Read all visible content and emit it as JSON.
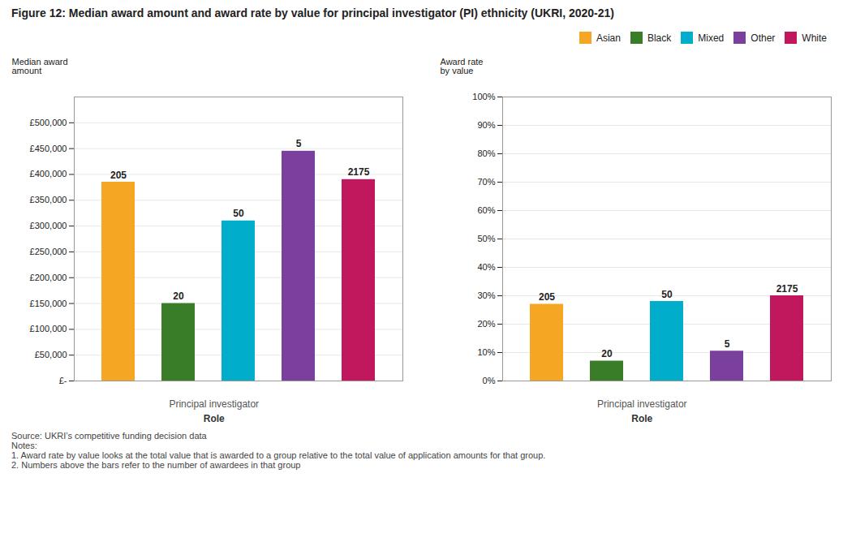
{
  "chart_data": [
    {
      "type": "bar",
      "title": "Figure 12: Median award amount and award rate by value for principal investigator (PI) ethnicity (UKRI, 2020-21)",
      "categories": [
        "Asian",
        "Black",
        "Mixed",
        "Other",
        "White"
      ],
      "colors": [
        "#F5A623",
        "#3A7D28",
        "#00AECC",
        "#7B3F9E",
        "#C0175D"
      ],
      "values": [
        385000,
        150000,
        310000,
        445000,
        390000
      ],
      "counts": [
        205,
        20,
        50,
        5,
        2175
      ],
      "ylabel": "Median award\namount",
      "xlabel": "Role",
      "annotations": [
        "Principal investigator"
      ],
      "caption": "Source: UKRI’s competitive funding decision data\nNotes:\n1.  Award rate by value looks at the total value that is awarded to a group relative to the total value of application amounts for that group.\n2.  Numbers above the bars refer to the number of awardees in that group",
      "ylim": [
        0,
        550000
      ],
      "yticks": [
        {
          "value": 0,
          "label": "£-"
        },
        {
          "value": 50000,
          "label": "£50,000"
        },
        {
          "value": 100000,
          "label": "£100,000"
        },
        {
          "value": 150000,
          "label": "£150,000"
        },
        {
          "value": 200000,
          "label": "£200,000"
        },
        {
          "value": 250000,
          "label": "£250,000"
        },
        {
          "value": 300000,
          "label": "£300,000"
        },
        {
          "value": 350000,
          "label": "£350,000"
        },
        {
          "value": 400000,
          "label": "£400,000"
        },
        {
          "value": 450000,
          "label": "£450,000"
        },
        {
          "value": 500000,
          "label": "£500,000"
        }
      ],
      "grid": true,
      "legend": "top right",
      "tick_labels": "y"
    },
    {
      "type": "bar",
      "categories": [
        "Asian",
        "Black",
        "Mixed",
        "Other",
        "White"
      ],
      "colors": [
        "#F5A623",
        "#3A7D28",
        "#00AECC",
        "#7B3F9E",
        "#C0175D"
      ],
      "values": [
        0.27,
        0.07,
        0.28,
        0.105,
        0.3
      ],
      "counts": [
        205,
        20,
        50,
        5,
        2175
      ],
      "ylabel": "Award rate\nby value",
      "xlabel": "Role",
      "annotations": [
        "Principal investigator"
      ],
      "ylim": [
        0,
        1.0
      ],
      "yticks": [
        {
          "value": 0,
          "label": "0%"
        },
        {
          "value": 0.1,
          "label": "10%"
        },
        {
          "value": 0.2,
          "label": "20%"
        },
        {
          "value": 0.3,
          "label": "30%"
        },
        {
          "value": 0.4,
          "label": "40%"
        },
        {
          "value": 0.5,
          "label": "50%"
        },
        {
          "value": 0.6,
          "label": "60%"
        },
        {
          "value": 0.7,
          "label": "70%"
        },
        {
          "value": 0.8,
          "label": "80%"
        },
        {
          "value": 0.9,
          "label": "90%"
        },
        {
          "value": 1.0,
          "label": "100%"
        }
      ],
      "grid": true,
      "tick_labels": "y"
    }
  ]
}
